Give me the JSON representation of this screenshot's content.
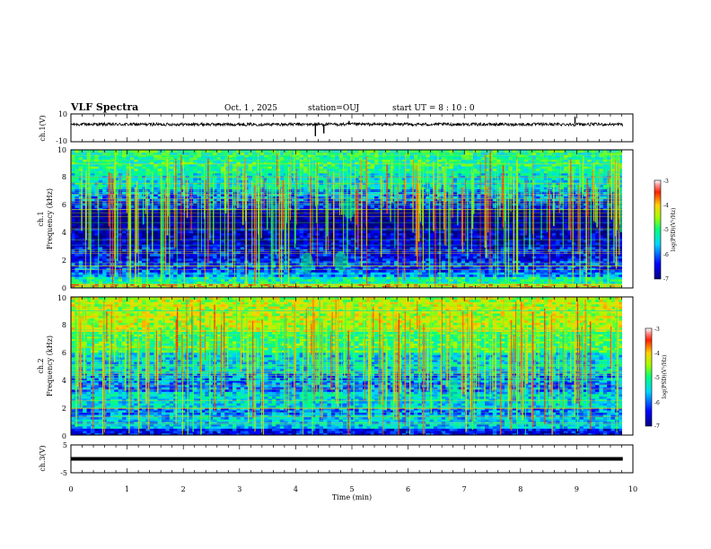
{
  "header": {
    "title": "VLF Spectra",
    "date": "Oct. 1 , 2025",
    "station": "station=OUJ",
    "start": "start  UT =   8 : 10 : 0"
  },
  "chart_data": {
    "type": "heatmap",
    "x_range": [
      0,
      10
    ],
    "x_ticks": [
      "0",
      "1",
      "2",
      "3",
      "4",
      "5",
      "6",
      "7",
      "8",
      "9",
      "10"
    ],
    "xlabel": "Time  (min)",
    "panels": [
      {
        "id": "ch1-waveform",
        "type": "line",
        "ylabel": "ch.1(V)",
        "ylim": [
          -10,
          10
        ],
        "y_ticks": [
          "10",
          "-10"
        ],
        "baseline": 2.5,
        "color": "#000000",
        "spikes": [
          {
            "x": 4.35,
            "y": -6
          },
          {
            "x": 4.5,
            "y": -4
          },
          {
            "x": 4.95,
            "y": 5
          },
          {
            "x": 8.97,
            "y": 8
          }
        ]
      },
      {
        "id": "ch1-spectrogram",
        "type": "heatmap",
        "ylabel_line1": "ch.1",
        "ylabel_line2": "Frequency (kHz)",
        "ylim": [
          0,
          10
        ],
        "y_ticks": [
          "0",
          "2",
          "4",
          "6",
          "8",
          "10"
        ],
        "colorbar": {
          "label": "log(PSD)(V²/Hz)",
          "range": [
            -7,
            -3
          ],
          "ticks": [
            "-3",
            "-4",
            "-5",
            "-6",
            "-7"
          ]
        },
        "bands": [
          {
            "from": 0.0,
            "to": 0.3,
            "level": -4.0
          },
          {
            "from": 0.3,
            "to": 0.8,
            "level": -5.2
          },
          {
            "from": 0.8,
            "to": 1.2,
            "level": -5.8
          },
          {
            "from": 1.2,
            "to": 2.0,
            "level": -6.2
          },
          {
            "from": 2.0,
            "to": 3.0,
            "level": -6.4
          },
          {
            "from": 3.0,
            "to": 4.3,
            "level": -6.7
          },
          {
            "from": 4.3,
            "to": 5.6,
            "level": -7.0
          },
          {
            "from": 5.6,
            "to": 6.3,
            "level": -6.3
          },
          {
            "from": 6.3,
            "to": 7.2,
            "level": -5.9
          },
          {
            "from": 7.2,
            "to": 8.3,
            "level": -5.4
          },
          {
            "from": 8.3,
            "to": 10.0,
            "level": -5.1
          }
        ],
        "events": [
          {
            "t": 4.2,
            "f": 1.8,
            "level": -5.0
          },
          {
            "t": 4.8,
            "f": 1.9,
            "level": -5.0
          },
          {
            "t": 4.95,
            "f": 5.8,
            "level": -5.0
          }
        ]
      },
      {
        "id": "ch2-spectrogram",
        "type": "heatmap",
        "ylabel_line1": "ch.2",
        "ylabel_line2": "Frequency (kHz)",
        "ylim": [
          0,
          10
        ],
        "y_ticks": [
          "0",
          "2",
          "4",
          "6",
          "8",
          "10"
        ],
        "colorbar": {
          "label": "log(PSD)(V²/Hz)",
          "range": [
            -7,
            -3
          ],
          "ticks": [
            "-3",
            "-4",
            "-5",
            "-6",
            "-7"
          ]
        },
        "bands": [
          {
            "from": 0.0,
            "to": 0.5,
            "level": -6.4
          },
          {
            "from": 0.5,
            "to": 1.5,
            "level": -5.6
          },
          {
            "from": 1.5,
            "to": 2.0,
            "level": -5.9
          },
          {
            "from": 2.0,
            "to": 3.2,
            "level": -5.5
          },
          {
            "from": 3.2,
            "to": 4.5,
            "level": -5.9
          },
          {
            "from": 4.5,
            "to": 6.0,
            "level": -5.5
          },
          {
            "from": 6.0,
            "to": 7.5,
            "level": -4.9
          },
          {
            "from": 7.5,
            "to": 10.0,
            "level": -4.4
          }
        ],
        "events": [
          {
            "t": 4.2,
            "f": 2.8,
            "level": -5.0
          },
          {
            "t": 6.8,
            "f": 3.2,
            "level": -5.0
          }
        ]
      },
      {
        "id": "ch3-waveform",
        "type": "line",
        "ylabel": "ch.3(V)",
        "ylim": [
          -5,
          5
        ],
        "y_ticks": [
          "5",
          "-5"
        ],
        "baseline": 0,
        "color": "#000000"
      }
    ]
  }
}
